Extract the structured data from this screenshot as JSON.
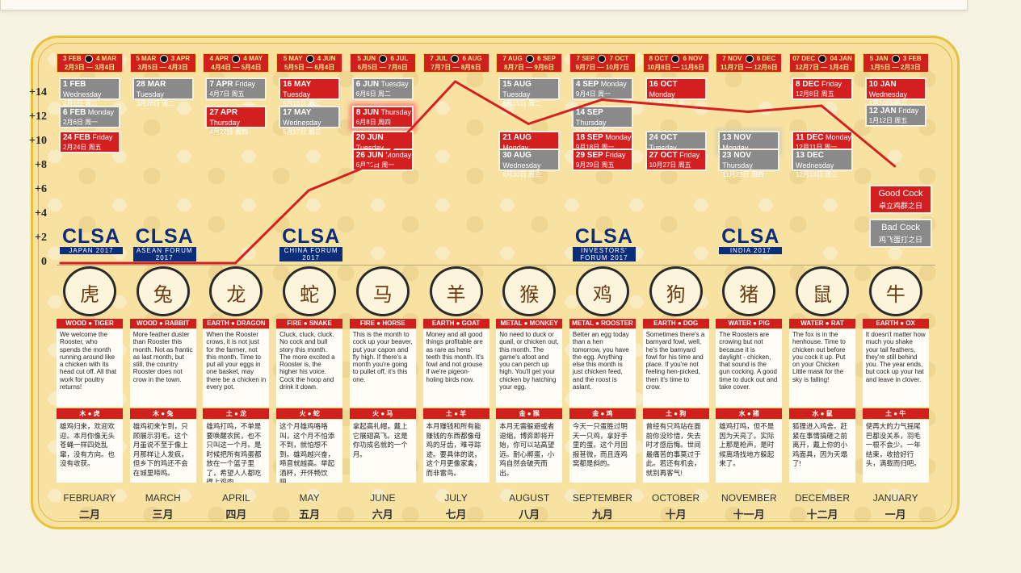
{
  "chart_data": {
    "type": "line",
    "x": [
      "FEBRUARY",
      "MARCH",
      "APRIL",
      "MAY",
      "JUNE",
      "JULY",
      "AUGUST",
      "SEPTEMBER",
      "OCTOBER",
      "NOVEMBER",
      "DECEMBER",
      "JANUARY"
    ],
    "values": [
      0,
      0,
      0,
      6,
      8.5,
      15,
      11.5,
      13.5,
      13,
      12.5,
      13,
      8
    ],
    "ylim": [
      0,
      15
    ],
    "yticks": [
      "+14",
      "+12",
      "+10",
      "+8",
      "+6",
      "+4",
      "+2",
      "0"
    ],
    "ytick_values": [
      14,
      12,
      10,
      8,
      6,
      4,
      2,
      0
    ],
    "line_color": "#d62020"
  },
  "months": [
    {
      "en": "FEBRUARY",
      "cn": "二月",
      "period": [
        "3 FEB",
        "4 MAR",
        "2月3日",
        "3月4日"
      ],
      "element": "WOOD",
      "animal": "TIGER",
      "element_cn": "木",
      "animal_cn": "虎",
      "glyph": "🐯",
      "dates": [
        {
          "d": "1 FEB",
          "w": "Wednesday",
          "zh": "2月1日  周三",
          "c": "grey",
          "row": 0
        },
        {
          "d": "6 FEB",
          "w": "Monday",
          "zh": "2月6日  周一",
          "c": "grey",
          "row": 1.6
        },
        {
          "d": "24 FEB",
          "w": "Friday",
          "zh": "2月24日  周五",
          "c": "red",
          "row": 3
        }
      ],
      "text": "We welcome the Rooster, who spends the month running around like a chicken with its head cut off. All that work for poultry returns!",
      "cn_text": "雄鸡归来，欢迎欢迎。本月你像无头苍蝇一样四处乱窜，没有方向。也没有收获。"
    },
    {
      "en": "MARCH",
      "cn": "三月",
      "period": [
        "5 MAR",
        "3 APR",
        "3月5日",
        "4月3日"
      ],
      "element": "WOOD",
      "animal": "RABBIT",
      "element_cn": "木",
      "animal_cn": "兔",
      "dates": [
        {
          "d": "28 MAR",
          "w": "Tuesday",
          "zh": "3月28日  周二",
          "c": "grey",
          "row": 0
        }
      ],
      "text": "More feather duster than Rooster this month. Not as frantic as last month, but still, the country Rooster does not crow in the town.",
      "cn_text": "雄鸡初来乍到，只顾展示羽毛。这个月虽说不至于像上月那样让人发疯，但乡下的鸡还不会在城里啼鸣。"
    },
    {
      "en": "APRIL",
      "cn": "四月",
      "period": [
        "4 APR",
        "4 MAY",
        "4月4日",
        "5月4日"
      ],
      "element": "EARTH",
      "animal": "DRAGON",
      "element_cn": "土",
      "animal_cn": "龙",
      "dates": [
        {
          "d": "7 APR",
          "w": "Friday",
          "zh": "4月7日  周五",
          "c": "grey",
          "row": 0
        },
        {
          "d": "27 APR",
          "w": "Thursday",
          "zh": "4月27日  周四",
          "c": "red",
          "row": 1.6
        }
      ],
      "text": "When the Rooster crows, it is not just for the farmer, not this month. Time to put all your eggs in one basket, may there be a chicken in every pot.",
      "cn_text": "雄鸡打鸣，不单是要唤醒农民，也不只叫这一个月。是时候把所有鸡蛋都放在一个篮子里了，希望人人都吃得上鸡肉。"
    },
    {
      "en": "MAY",
      "cn": "五月",
      "period": [
        "5 MAY",
        "4 JUN",
        "5月5日",
        "6月4日"
      ],
      "element": "FIRE",
      "animal": "SNAKE",
      "element_cn": "火",
      "animal_cn": "蛇",
      "dates": [
        {
          "d": "16 MAY",
          "w": "Tuesday",
          "zh": "5月16日  周二",
          "c": "red",
          "row": 0
        },
        {
          "d": "17 MAY",
          "w": "Wednesday",
          "zh": "5月17日  周三",
          "c": "grey",
          "row": 1.6
        }
      ],
      "text": "Cluck, cluck, cluck. No cock and bull story this month. The more excited a Rooster is, the higher his voice. Cock the hoop and drink it down.",
      "cn_text": "这个月雄鸡咯咯叫，这个月不怕添不到，就怕想不到。雄鸡越兴奋，啼音就越高。举起酒杯，开怀畅饮吧。"
    },
    {
      "en": "JUNE",
      "cn": "六月",
      "period": [
        "5 JUN",
        "6 JUL",
        "6月5日",
        "7月6日"
      ],
      "element": "FIRE",
      "animal": "HORSE",
      "element_cn": "火",
      "animal_cn": "马",
      "dates": [
        {
          "d": "6 JUN",
          "w": "Tuesday",
          "zh": "6月6日  周二",
          "c": "grey",
          "row": 0
        },
        {
          "d": "8 JUN",
          "w": "Thursday",
          "zh": "6月8日  周四",
          "c": "red",
          "row": 1.6,
          "hl": true
        },
        {
          "d": "20 JUN",
          "w": "Tuesday",
          "zh": "6月20日  周二",
          "c": "red",
          "row": 3
        },
        {
          "d": "26 JUN",
          "w": "Monday",
          "zh": "6月26日  周一",
          "c": "red",
          "row": 4
        }
      ],
      "text": "This is the month to cock up your beaver, put your capon and fly high. If there's a month you're going to pullet off, it's this one.",
      "cn_text": "拿起高礼帽，戴上它展翅高飞。这是你功成名就的一个月。"
    },
    {
      "en": "JULY",
      "cn": "七月",
      "period": [
        "7 JUL",
        "6 AUG",
        "7月7日",
        "8月6日"
      ],
      "element": "EARTH",
      "animal": "GOAT",
      "element_cn": "土",
      "animal_cn": "羊",
      "dates": [],
      "text": "Money and all good things profitable are as rare as hens' teeth this month. It's fowl and not grouse if we're pigeon-holing birds now.",
      "cn_text": "本月赚钱和所有能赚钱的东西都像母鸡的牙齿，难寻踪迹。要具体的说，这个月更像家禽，而非雷鸟。"
    },
    {
      "en": "AUGUST",
      "cn": "八月",
      "period": [
        "7 AUG",
        "6 SEP",
        "8月7日",
        "9月6日"
      ],
      "element": "METAL",
      "animal": "MONKEY",
      "element_cn": "金",
      "animal_cn": "猴",
      "dates": [
        {
          "d": "15 AUG",
          "w": "Tuesday",
          "zh": "8月15日  周二",
          "c": "grey",
          "row": 0
        },
        {
          "d": "21 AUG",
          "w": "Monday",
          "zh": "8月21日  周一",
          "c": "red",
          "row": 3
        },
        {
          "d": "30 AUG",
          "w": "Wednesday",
          "zh": "8月30日  周三",
          "c": "grey",
          "row": 4
        }
      ],
      "text": "No need to duck or quail, or chicken out, this month. The game's afoot and you can perch up high. You'll get your chicken by hatching your egg.",
      "cn_text": "本月无需躲避或者退缩，博弈即将开始，你可以站高望远。耐心孵蛋，小鸡自然会破壳而出。"
    },
    {
      "en": "SEPTEMBER",
      "cn": "九月",
      "period": [
        "7 SEP",
        "7 OCT",
        "9月7日",
        "10月7日"
      ],
      "element": "METAL",
      "animal": "ROOSTER",
      "element_cn": "金",
      "animal_cn": "鸡",
      "dates": [
        {
          "d": "4 SEP",
          "w": "Monday",
          "zh": "9月4日  周一",
          "c": "grey",
          "row": 0
        },
        {
          "d": "14 SEP",
          "w": "Thursday",
          "zh": "9月14日  周四",
          "c": "grey",
          "row": 1.6
        },
        {
          "d": "18 SEP",
          "w": "Monday",
          "zh": "9月18日  周一",
          "c": "red",
          "row": 3
        },
        {
          "d": "29 SEP",
          "w": "Friday",
          "zh": "9月29日  周五",
          "c": "red",
          "row": 4
        }
      ],
      "text": "Better an egg today than a hen tomorrow, you have the egg. Anything else this month is just chicken feed, and the roost is aslant.",
      "cn_text": "今天一只蛋胜过明天一只鸡，拿好手里的蛋。这个月回报甚微，而且连鸡窝都是斜的。"
    },
    {
      "en": "OCTOBER",
      "cn": "十月",
      "period": [
        "8 OCT",
        "6 NOV",
        "10月8日",
        "11月6日"
      ],
      "element": "EARTH",
      "animal": "DOG",
      "element_cn": "土",
      "animal_cn": "狗",
      "dates": [
        {
          "d": "16 OCT",
          "w": "Monday",
          "zh": "10月16日  周一",
          "c": "red",
          "row": 0
        },
        {
          "d": "24 OCT",
          "w": "Tuesday",
          "zh": "10月24日  周二",
          "c": "grey",
          "row": 3
        },
        {
          "d": "27 OCT",
          "w": "Friday",
          "zh": "10月27日  周五",
          "c": "red",
          "row": 4
        }
      ],
      "text": "Sometimes there's a barnyard fowl, well, he's the barnyard fowl for his time and place. If you're not feeling hen-picked, then it's time to crow.",
      "cn_text": "曾经有只鸡站在面前你没珍惜，失去时才感后悔。世间最痛苦的事莫过于此。若还有机会，就别再客气!"
    },
    {
      "en": "NOVEMBER",
      "cn": "十一月",
      "period": [
        "7 NOV",
        "6 DEC",
        "11月7日",
        "12月6日"
      ],
      "element": "WATER",
      "animal": "PIG",
      "element_cn": "水",
      "animal_cn": "猪",
      "dates": [
        {
          "d": "13 NOV",
          "w": "Monday",
          "zh": "11月13日  周一",
          "c": "grey",
          "row": 3,
          "hlg": true
        },
        {
          "d": "23 NOV",
          "w": "Thursday",
          "zh": "11月23日  周四",
          "c": "grey",
          "row": 4
        }
      ],
      "text": "The Roosters are crowing but not because it is daylight - chicken, that sound is the gun cocking. A good time to duck out and take cover.",
      "cn_text": "雄鸡打鸣，但不是因为天亮了。实际上那是枪声，是时候离场找地方躲起来了。"
    },
    {
      "en": "DECEMBER",
      "cn": "十二月",
      "period": [
        "07 DEC",
        "04 JAN",
        "12月7日",
        "1月4日"
      ],
      "element": "WATER",
      "animal": "RAT",
      "element_cn": "水",
      "animal_cn": "鼠",
      "dates": [
        {
          "d": "8 DEC",
          "w": "Friday",
          "zh": "12月8日  周五",
          "c": "red",
          "row": 0
        },
        {
          "d": "11 DEC",
          "w": "Monday",
          "zh": "12月11日  周一",
          "c": "red",
          "row": 3
        },
        {
          "d": "13 DEC",
          "w": "Wednesday",
          "zh": "12月13日  周三",
          "c": "grey",
          "row": 4
        }
      ],
      "text": "The fox is in the henhouse. Time to chicken out before you cock it up. Put on your Chicken Little mask for the sky is falling!",
      "cn_text": "狐狸进入鸡舍。赶紧在事情搞砸之前离开，戴上你的小鸡面具，因为天塌了!"
    },
    {
      "en": "JANUARY",
      "cn": "一月",
      "period": [
        "5 JAN",
        "3 FEB",
        "1月5日",
        "2月3日"
      ],
      "element": "EARTH",
      "animal": "OX",
      "element_cn": "土",
      "animal_cn": "牛",
      "dates": [
        {
          "d": "10 JAN",
          "w": "Wednesday",
          "zh": "1月10日  周三",
          "c": "red",
          "row": 0
        },
        {
          "d": "12 JAN",
          "w": "Friday",
          "zh": "1月12日  周五",
          "c": "grey",
          "row": 1.5
        }
      ],
      "text": "It doesn't matter how much you shake your tail feathers, they're still behind you. The year ends, but cock up your hat and leave in clover.",
      "cn_text": "使再大的力气摇尾巴都没关系，羽毛一根不会少。一年结束，收拾好行头，满载而归吧。"
    }
  ],
  "logos": [
    {
      "month": 0,
      "t": "CLSA",
      "s": "JAPAN 2017"
    },
    {
      "month": 1,
      "t": "CLSA",
      "s": "ASEAN FORUM 2017"
    },
    {
      "month": 3,
      "t": "CLSA",
      "s": "CHINA FORUM 2017"
    },
    {
      "month": 7,
      "t": "CLSA",
      "s": "INVESTORS' FORUM 2017"
    },
    {
      "month": 9,
      "t": "CLSA",
      "s": "INDIA 2017"
    }
  ],
  "legend": {
    "good": {
      "en": "Good Cock",
      "zh": "卓立鸡群之日",
      "color": "#d41f20"
    },
    "bad": {
      "en": "Bad Cock",
      "zh": "鸡飞蛋打之日",
      "color": "#8a8a8a"
    }
  }
}
